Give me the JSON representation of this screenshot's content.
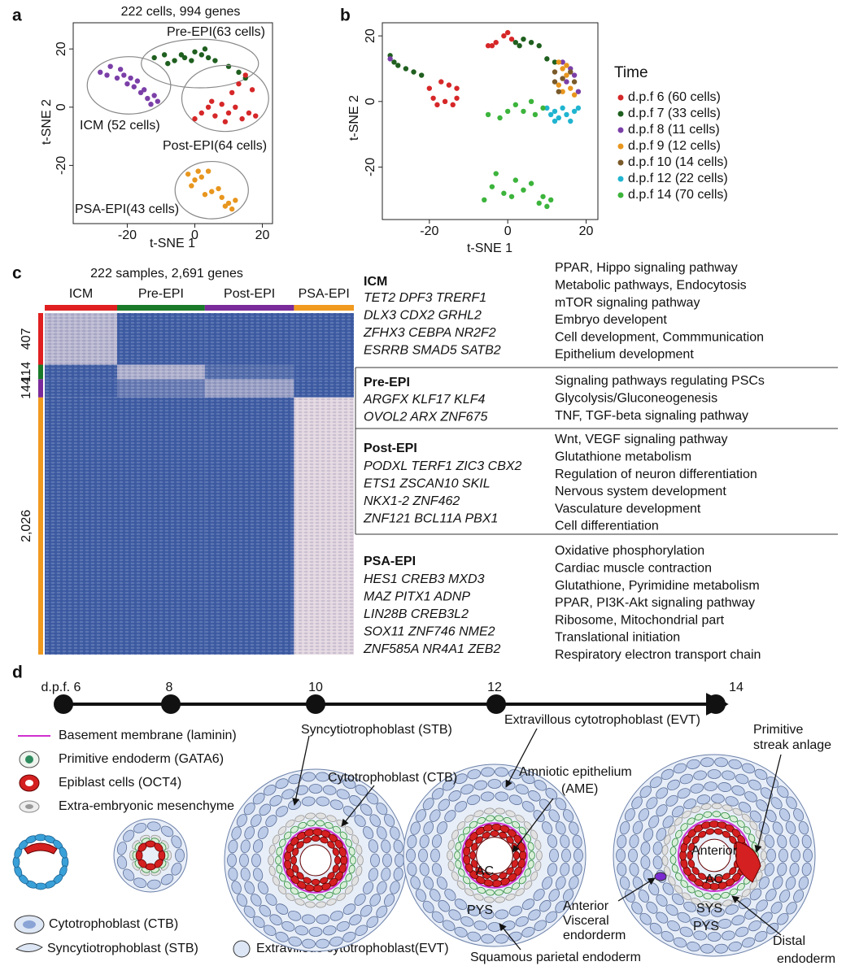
{
  "chart_data": [
    {
      "type": "scatter",
      "panel_label": "a",
      "title": "222 cells, 994 genes",
      "x_label": "t-SNE 1",
      "y_label": "t-SNE 2",
      "xlim": [
        -36,
        23
      ],
      "ylim": [
        -40,
        29
      ],
      "xticks": [
        -20,
        0,
        20
      ],
      "yticks": [
        -20,
        0,
        20
      ],
      "series": [
        {
          "name": "ICM (52 cells)",
          "color": "#7b3fa8",
          "x": [
            -28,
            -25,
            -23,
            -21,
            -20,
            -18,
            -16,
            -14,
            -13,
            -12,
            -17,
            -22,
            -15,
            -11,
            -19,
            -26
          ],
          "values": [
            12,
            14,
            10,
            11,
            8,
            7,
            5,
            3,
            1,
            4,
            9,
            13,
            6,
            2,
            10,
            11
          ]
        },
        {
          "name": "Pre-EPI(63 cells)",
          "color": "#1f5f1f",
          "x": [
            -12,
            -9,
            -6,
            -3,
            0,
            2,
            4,
            6,
            -1,
            -8,
            10,
            13,
            15,
            3,
            -4
          ],
          "values": [
            17,
            18,
            16,
            17,
            19,
            18,
            17,
            16,
            16,
            15,
            14,
            12,
            10,
            20,
            18
          ]
        },
        {
          "name": "Post-EPI(64 cells)",
          "color": "#d62728",
          "x": [
            0,
            2,
            4,
            6,
            8,
            10,
            12,
            14,
            16,
            18,
            11,
            13,
            15,
            9,
            5,
            17
          ],
          "values": [
            -4,
            -2,
            0,
            -3,
            1,
            -2,
            0,
            -4,
            -2,
            -3,
            5,
            8,
            11,
            -5,
            2,
            6
          ]
        },
        {
          "name": "PSA-EPI(43 cells)",
          "color": "#e8961e",
          "x": [
            -2,
            0,
            -1,
            2,
            4,
            5,
            8,
            9,
            10,
            12,
            3,
            7,
            1,
            11
          ],
          "values": [
            -23,
            -25,
            -27,
            -24,
            -22,
            -29,
            -31,
            -34,
            -33,
            -32,
            -30,
            -28,
            -22,
            -35
          ]
        }
      ]
    },
    {
      "type": "scatter",
      "panel_label": "b",
      "x_label": "t-SNE 1",
      "y_label": "t-SNE 2",
      "xlim": [
        -32,
        23
      ],
      "ylim": [
        -36,
        24
      ],
      "xticks": [
        -20,
        0,
        20
      ],
      "yticks": [
        -20,
        0,
        20
      ],
      "legend": "right",
      "legend_title": "Time",
      "series": [
        {
          "name": "d.p.f 6 (60 cells)",
          "color": "#d62728",
          "x": [
            -20,
            -19,
            -18,
            -16,
            -14,
            -13,
            -13,
            -15,
            -17,
            -5,
            -3,
            -1,
            0,
            1,
            -4
          ],
          "values": [
            4,
            1,
            -1,
            0,
            -1,
            1,
            4,
            5,
            6,
            17,
            18,
            20,
            21,
            19,
            17
          ]
        },
        {
          "name": "d.p.f 7 (33 cells)",
          "color": "#1f5f1f",
          "x": [
            -30,
            -29,
            -28,
            -26,
            -24,
            -22,
            2,
            4,
            6,
            8,
            3,
            10,
            12
          ],
          "values": [
            14,
            12,
            11,
            10,
            9,
            8,
            18,
            19,
            18,
            17,
            17,
            13,
            12
          ]
        },
        {
          "name": "d.p.f 8 (11 cells)",
          "color": "#7b3fa8",
          "x": [
            14,
            16,
            17,
            15,
            18,
            -30
          ],
          "values": [
            12,
            10,
            8,
            6,
            3,
            13
          ]
        },
        {
          "name": "d.p.f 9 (12 cells)",
          "color": "#e8961e",
          "x": [
            13,
            14,
            15,
            13,
            16,
            17,
            14,
            15
          ],
          "values": [
            12,
            10,
            8,
            5,
            4,
            2,
            3,
            11
          ]
        },
        {
          "name": "d.p.f 10 (14 cells)",
          "color": "#7a5a2a",
          "x": [
            12,
            14,
            16,
            13,
            17,
            12
          ],
          "values": [
            9,
            7,
            9,
            3,
            6,
            6
          ]
        },
        {
          "name": "d.p.f 12 (22 cells)",
          "color": "#20b4d0",
          "x": [
            10,
            11,
            12,
            13,
            14,
            15,
            16,
            17,
            12,
            18
          ],
          "values": [
            -2,
            -4,
            -3,
            -5,
            -2,
            -4,
            -6,
            -3,
            -6,
            -2
          ]
        },
        {
          "name": "d.p.f 14 (70 cells)",
          "color": "#3cb43c",
          "x": [
            -5,
            -2,
            0,
            2,
            4,
            6,
            7,
            9,
            -6,
            -4,
            -3,
            -1,
            1,
            2,
            4,
            6,
            8,
            9,
            10,
            11
          ],
          "values": [
            -4,
            -5,
            -3,
            -1,
            -3,
            0,
            -4,
            -2,
            -30,
            -26,
            -22,
            -28,
            -29,
            -24,
            -27,
            -25,
            -31,
            -29,
            -32,
            -30
          ]
        }
      ]
    },
    {
      "type": "heatmap",
      "panel_label": "c",
      "title": "222 samples, 2,691 genes",
      "columns": [
        {
          "name": "ICM",
          "color": "#e02020",
          "size": 52
        },
        {
          "name": "Pre-EPI",
          "color": "#1a7a2a",
          "size": 63
        },
        {
          "name": "Post-EPI",
          "color": "#7a2a9a",
          "size": 64
        },
        {
          "name": "PSA-EPI",
          "color": "#f09a20",
          "size": 43
        }
      ],
      "rows": [
        {
          "size": 407,
          "color": "#e02020"
        },
        {
          "size": 114,
          "color": "#1a7a2a"
        },
        {
          "size": 144,
          "color": "#7a2a9a"
        },
        {
          "size": {
            "value": 2026,
            "label": "2,026"
          },
          "color": "#f09a20"
        }
      ],
      "values": [
        [
          0.3,
          0.9,
          0.9,
          0.9
        ],
        [
          0.9,
          0.35,
          0.8,
          0.9
        ],
        [
          0.9,
          0.7,
          0.45,
          0.9
        ],
        [
          0.9,
          0.9,
          0.9,
          0.1
        ]
      ],
      "colors": [
        "#f6e4e6",
        "#2c4f9e"
      ]
    }
  ],
  "gene_table": [
    {
      "group": "ICM",
      "genes": [
        "TET2 DPF3 TRERF1",
        "DLX3 CDX2 GRHL2",
        "ZFHX3 CEBPA NR2F2",
        "ESRRB SMAD5 SATB2"
      ],
      "pathways": [
        "PPAR, Hippo signaling pathway",
        "Metabolic pathways, Endocytosis",
        "mTOR signaling pathway",
        "Embryo developent",
        "Cell development, Commmunication",
        "Epithelium development"
      ]
    },
    {
      "group": "Pre-EPI",
      "genes": [
        "ARGFX KLF17 KLF4",
        "OVOL2 ARX ZNF675"
      ],
      "pathways": [
        "Signaling pathways regulating PSCs",
        "Glycolysis/Gluconeogenesis",
        "TNF, TGF-beta signaling pathway"
      ]
    },
    {
      "group": "Post-EPI",
      "genes": [
        "PODXL TERF1 ZIC3 CBX2",
        "ETS1 ZSCAN10 SKIL",
        "NKX1-2 ZNF462",
        "ZNF121 BCL11A PBX1"
      ],
      "pathways": [
        "Wnt, VEGF signaling pathway",
        "Glutathione metabolism",
        "Regulation of neuron differentiation",
        "Nervous system development",
        "Vasculature development",
        "Cell differentiation"
      ]
    },
    {
      "group": "PSA-EPI",
      "genes": [
        "HES1 CREB3 MXD3",
        "MAZ PITX1 ADNP",
        "LIN28B CREB3L2",
        "SOX11 ZNF746 NME2",
        "ZNF585A NR4A1 ZEB2"
      ],
      "pathways": [
        "Oxidative phosphorylation",
        "Cardiac muscle contraction",
        "Glutathione, Pyrimidine metabolism",
        "PPAR, PI3K-Akt signaling pathway",
        "Ribosome, Mitochondrial part",
        "Translational initiation",
        "Respiratory electron transport chain"
      ]
    }
  ],
  "diagram": {
    "panel_label": "d",
    "timeline": [
      "d.p.f. 6",
      "8",
      "10",
      "12",
      "14"
    ],
    "legend": [
      "Basement membrane (laminin)",
      "Primitive endoderm (GATA6)",
      "Epiblast cells (OCT4)",
      "Extra-embryonic mesenchyme",
      "Cytotrophoblast (CTB)",
      "Syncytiotrophoblast (STB)",
      "Extravillous cytotrophoblast(EVT)"
    ],
    "annotations": [
      "Syncytiotrophoblast (STB)",
      "Extravillous cytotrophoblast (EVT)",
      "Cytotrophoblast (CTB)",
      "Amniotic epithelium",
      "(AME)",
      "Primitive",
      "streak anlage",
      "Anterior",
      "AC",
      "AC",
      "SYS",
      "PYS",
      "PYS",
      "Anterior",
      "Visceral",
      "endorderm",
      "Squamous parietal endoderm",
      "Distal",
      "endoderm"
    ]
  }
}
